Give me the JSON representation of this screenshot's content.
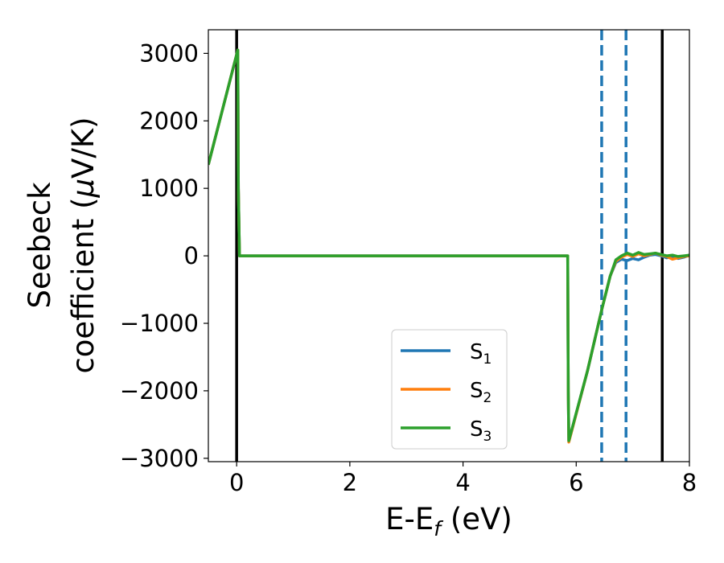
{
  "chart_data": {
    "type": "line",
    "xlabel_main": "E-E",
    "xlabel_sub": "f",
    "xlabel_unit": " (eV)",
    "ylabel_line1": "Seebeck",
    "ylabel_line2_a": "coefficient  (",
    "ylabel_line2_mu": "μ",
    "ylabel_line2_b": "V/K)",
    "xlim": [
      -0.5,
      8.0
    ],
    "ylim": [
      -3050,
      3350
    ],
    "xticks": [
      0,
      2,
      4,
      6,
      8
    ],
    "xtick_labels": [
      "0",
      "2",
      "4",
      "6",
      "8"
    ],
    "yticks": [
      -3000,
      -2000,
      -1000,
      0,
      1000,
      2000,
      3000
    ],
    "ytick_labels": [
      "−3000",
      "−2000",
      "−1000",
      "0",
      "1000",
      "2000",
      "3000"
    ],
    "grid": false,
    "legend_position": "lower-center",
    "vertical_lines": [
      {
        "x": 0.0,
        "style": "solid",
        "color": "#000000"
      },
      {
        "x": 7.52,
        "style": "solid",
        "color": "#000000"
      },
      {
        "x": 6.45,
        "style": "dashed",
        "color": "#1f77b4"
      },
      {
        "x": 6.88,
        "style": "dashed",
        "color": "#1f77b4"
      }
    ],
    "series": [
      {
        "name": "S",
        "sub": "1",
        "color": "#1f77b4",
        "x": [
          -0.5,
          0.02,
          0.03,
          0.05,
          5.85,
          5.86,
          5.87,
          6.2,
          6.45,
          6.6,
          6.7,
          6.8,
          6.9,
          7.0,
          7.1,
          7.2,
          7.3,
          7.4,
          7.5,
          7.6,
          7.7,
          7.8,
          7.9,
          8.0
        ],
        "y": [
          1350,
          3050,
          1000,
          0,
          0,
          -2000,
          -2750,
          -1700,
          -800,
          -300,
          -100,
          -50,
          -70,
          -40,
          -60,
          -20,
          10,
          20,
          0,
          -30,
          -10,
          -40,
          -20,
          10
        ]
      },
      {
        "name": "S",
        "sub": "2",
        "color": "#ff7f0e",
        "x": [
          -0.5,
          0.02,
          0.03,
          0.05,
          5.85,
          5.86,
          5.87,
          6.2,
          6.45,
          6.6,
          6.7,
          6.8,
          6.9,
          7.0,
          7.1,
          7.2,
          7.3,
          7.4,
          7.5,
          7.6,
          7.7,
          7.8,
          7.9,
          8.0
        ],
        "y": [
          1350,
          3050,
          1000,
          0,
          0,
          -2000,
          -2760,
          -1700,
          -800,
          -300,
          -80,
          -20,
          20,
          -10,
          30,
          0,
          20,
          40,
          10,
          -10,
          -50,
          -30,
          -10,
          0
        ]
      },
      {
        "name": "S",
        "sub": "3",
        "color": "#2ca02c",
        "x": [
          -0.5,
          0.02,
          0.03,
          0.05,
          5.85,
          5.86,
          5.87,
          6.2,
          6.45,
          6.6,
          6.7,
          6.8,
          6.9,
          7.0,
          7.1,
          7.2,
          7.3,
          7.4,
          7.5,
          7.6,
          7.7,
          7.8,
          7.9,
          8.0
        ],
        "y": [
          1350,
          3050,
          1000,
          0,
          0,
          -2000,
          -2740,
          -1700,
          -800,
          -300,
          -60,
          0,
          40,
          10,
          50,
          20,
          30,
          40,
          20,
          0,
          10,
          -10,
          0,
          10
        ]
      }
    ]
  }
}
